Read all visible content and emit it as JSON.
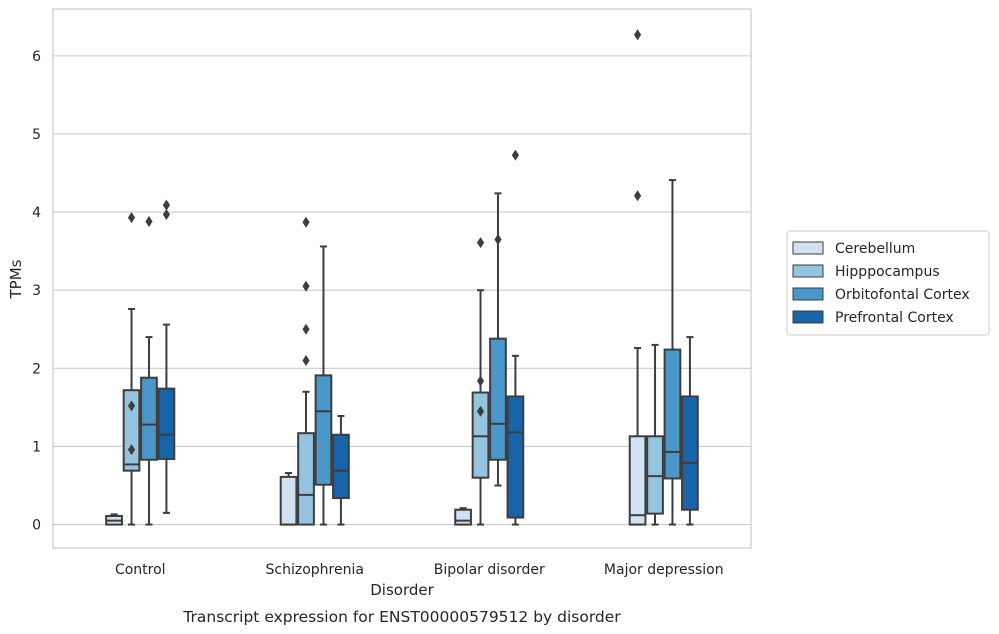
{
  "chart_data": {
    "type": "box",
    "caption": "Transcript expression for ENST00000579512 by disorder",
    "xlabel": "Disorder",
    "ylabel": "TPMs",
    "ylim": [
      -0.3,
      6.6
    ],
    "yticks": [
      0,
      1,
      2,
      3,
      4,
      5,
      6
    ],
    "grid": "horizontal",
    "legend_position": "right",
    "categories": [
      "Control",
      "Schizophrenia",
      "Bipolar disorder",
      "Major depression"
    ],
    "series": [
      {
        "name": "Cerebellum",
        "color": "#d0e1f2",
        "boxes": [
          {
            "whislo": 0.0,
            "q1": 0.0,
            "med": 0.05,
            "q3": 0.11,
            "whishi": 0.13,
            "fliers": []
          },
          {
            "whislo": 0.0,
            "q1": 0.0,
            "med": 0.0,
            "q3": 0.61,
            "whishi": 0.66,
            "fliers": []
          },
          {
            "whislo": 0.0,
            "q1": 0.0,
            "med": 0.05,
            "q3": 0.19,
            "whishi": 0.21,
            "fliers": []
          },
          {
            "whislo": 0.0,
            "q1": 0.0,
            "med": 0.12,
            "q3": 1.13,
            "whishi": 2.26,
            "fliers": [
              4.21,
              6.27
            ]
          }
        ]
      },
      {
        "name": "Hipppocampus",
        "color": "#94c4df",
        "boxes": [
          {
            "whislo": 0.0,
            "q1": 0.69,
            "med": 0.77,
            "q3": 1.72,
            "whishi": 2.76,
            "fliers": [
              0.96,
              1.52,
              3.93
            ]
          },
          {
            "whislo": 0.0,
            "q1": 0.0,
            "med": 0.38,
            "q3": 1.17,
            "whishi": 1.7,
            "fliers": [
              2.1,
              2.5,
              3.05,
              3.87
            ]
          },
          {
            "whislo": 0.0,
            "q1": 0.6,
            "med": 1.13,
            "q3": 1.69,
            "whishi": 3.0,
            "fliers": [
              1.45,
              1.84,
              3.61
            ]
          },
          {
            "whislo": 0.0,
            "q1": 0.14,
            "med": 0.62,
            "q3": 1.13,
            "whishi": 2.3,
            "fliers": []
          }
        ]
      },
      {
        "name": "Orbitofontal Cortex",
        "color": "#4a98c9",
        "boxes": [
          {
            "whislo": 0.0,
            "q1": 0.83,
            "med": 1.28,
            "q3": 1.88,
            "whishi": 2.4,
            "fliers": [
              3.88
            ]
          },
          {
            "whislo": 0.0,
            "q1": 0.51,
            "med": 1.45,
            "q3": 1.91,
            "whishi": 3.56,
            "fliers": []
          },
          {
            "whislo": 0.5,
            "q1": 0.83,
            "med": 1.29,
            "q3": 2.38,
            "whishi": 4.24,
            "fliers": [
              3.65
            ]
          },
          {
            "whislo": 0.0,
            "q1": 0.59,
            "med": 0.93,
            "q3": 2.24,
            "whishi": 4.41,
            "fliers": []
          }
        ]
      },
      {
        "name": "Prefrontal Cortex",
        "color": "#1764ab",
        "boxes": [
          {
            "whislo": 0.15,
            "q1": 0.84,
            "med": 1.15,
            "q3": 1.74,
            "whishi": 2.56,
            "fliers": [
              3.97,
              4.09
            ]
          },
          {
            "whislo": 0.0,
            "q1": 0.34,
            "med": 0.69,
            "q3": 1.15,
            "whishi": 1.39,
            "fliers": []
          },
          {
            "whislo": 0.0,
            "q1": 0.09,
            "med": 1.18,
            "q3": 1.64,
            "whishi": 2.16,
            "fliers": [
              4.73
            ]
          },
          {
            "whislo": 0.0,
            "q1": 0.19,
            "med": 0.79,
            "q3": 1.64,
            "whishi": 2.4,
            "fliers": []
          }
        ]
      }
    ]
  }
}
